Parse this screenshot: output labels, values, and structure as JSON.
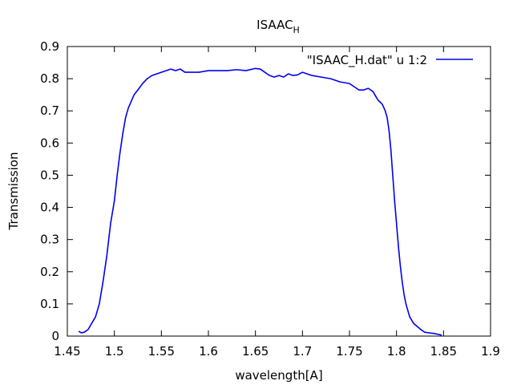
{
  "chart_data": {
    "type": "line",
    "title": "ISAAC",
    "title_subscript": "H",
    "xlabel": "wavelength[A]",
    "ylabel": "Transmission",
    "xlim": [
      1.45,
      1.9
    ],
    "ylim": [
      0,
      0.9
    ],
    "xticks": [
      "1.45",
      "1.5",
      "1.55",
      "1.6",
      "1.65",
      "1.7",
      "1.75",
      "1.8",
      "1.85",
      "1.9"
    ],
    "yticks": [
      "0",
      "0.1",
      "0.2",
      "0.3",
      "0.4",
      "0.5",
      "0.6",
      "0.7",
      "0.8",
      "0.9"
    ],
    "grid": false,
    "legend_position": "top-right",
    "series": [
      {
        "name": "\"ISAAC_H.dat\" u 1:2",
        "color": "#0000ee",
        "x": [
          1.462,
          1.465,
          1.468,
          1.472,
          1.476,
          1.48,
          1.484,
          1.488,
          1.492,
          1.496,
          1.5,
          1.503,
          1.506,
          1.509,
          1.512,
          1.515,
          1.518,
          1.521,
          1.525,
          1.53,
          1.535,
          1.54,
          1.545,
          1.55,
          1.555,
          1.56,
          1.565,
          1.57,
          1.575,
          1.58,
          1.59,
          1.6,
          1.61,
          1.62,
          1.63,
          1.64,
          1.65,
          1.655,
          1.66,
          1.665,
          1.67,
          1.675,
          1.68,
          1.685,
          1.69,
          1.695,
          1.7,
          1.705,
          1.71,
          1.72,
          1.73,
          1.74,
          1.75,
          1.755,
          1.76,
          1.765,
          1.77,
          1.775,
          1.78,
          1.785,
          1.788,
          1.79,
          1.792,
          1.794,
          1.796,
          1.798,
          1.8,
          1.802,
          1.804,
          1.806,
          1.808,
          1.81,
          1.814,
          1.818,
          1.822,
          1.826,
          1.83,
          1.835,
          1.84,
          1.845,
          1.848
        ],
        "y": [
          0.015,
          0.01,
          0.012,
          0.02,
          0.04,
          0.06,
          0.1,
          0.17,
          0.25,
          0.35,
          0.42,
          0.5,
          0.57,
          0.63,
          0.68,
          0.71,
          0.73,
          0.75,
          0.765,
          0.785,
          0.8,
          0.81,
          0.815,
          0.82,
          0.825,
          0.83,
          0.825,
          0.83,
          0.82,
          0.82,
          0.82,
          0.825,
          0.825,
          0.825,
          0.828,
          0.825,
          0.832,
          0.83,
          0.82,
          0.81,
          0.805,
          0.81,
          0.805,
          0.815,
          0.81,
          0.812,
          0.82,
          0.815,
          0.81,
          0.805,
          0.8,
          0.79,
          0.785,
          0.775,
          0.765,
          0.765,
          0.77,
          0.76,
          0.735,
          0.72,
          0.7,
          0.68,
          0.64,
          0.58,
          0.5,
          0.42,
          0.35,
          0.28,
          0.22,
          0.17,
          0.13,
          0.1,
          0.06,
          0.04,
          0.03,
          0.02,
          0.012,
          0.01,
          0.008,
          0.005,
          0.003
        ]
      }
    ]
  }
}
